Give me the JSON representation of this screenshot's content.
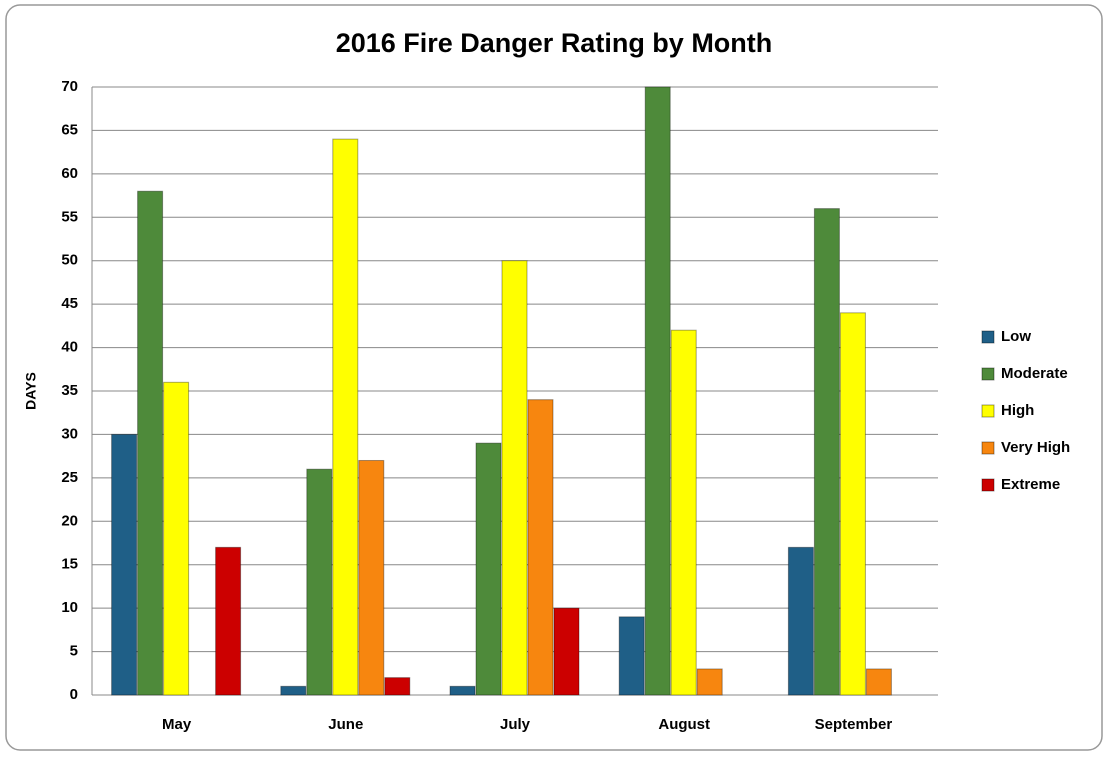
{
  "chart_data": {
    "type": "bar",
    "title": "2016 Fire Danger Rating by Month",
    "y_label": "DAYS",
    "categories": [
      "May",
      "June",
      "July",
      "August",
      "September"
    ],
    "series": [
      {
        "name": "Low",
        "color": "#1f5f87",
        "values": [
          30,
          1,
          1,
          9,
          17
        ]
      },
      {
        "name": "Moderate",
        "color": "#4e8a3a",
        "values": [
          58,
          26,
          29,
          70,
          56
        ]
      },
      {
        "name": "High",
        "color": "#ffff00",
        "values": [
          36,
          64,
          50,
          42,
          44
        ]
      },
      {
        "name": "Very High",
        "color": "#f7860f",
        "values": [
          0,
          27,
          34,
          3,
          3
        ]
      },
      {
        "name": "Extreme",
        "color": "#cc0000",
        "values": [
          17,
          2,
          10,
          0,
          0
        ]
      }
    ],
    "ylim": [
      0,
      70
    ],
    "yticks": [
      0,
      5,
      10,
      15,
      20,
      25,
      30,
      35,
      40,
      45,
      50,
      55,
      60,
      65,
      70
    ],
    "grid": true,
    "legend": "right"
  }
}
